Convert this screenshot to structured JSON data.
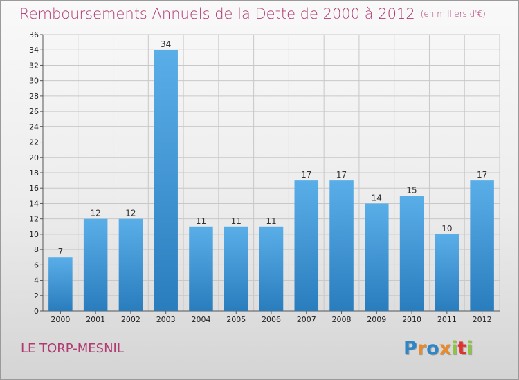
{
  "header": {
    "title": "Remboursements Annuels de la Dette de 2000 à 2012",
    "subtitle": "(en milliers d'€)"
  },
  "footer": {
    "commune": "LE TORP-MESNIL",
    "logo_letters": [
      "P",
      "r",
      "o",
      "x",
      "i",
      "t",
      "i"
    ],
    "logo_colors": [
      "#2f86c7",
      "#e8892b",
      "#2f86c7",
      "#e8892b",
      "#8cc63f",
      "#e0322f",
      "#8cc63f"
    ]
  },
  "chart_data": {
    "type": "bar",
    "title": "Remboursements Annuels de la Dette de 2000 à 2012",
    "subtitle": "(en milliers d'€)",
    "categories": [
      "2000",
      "2001",
      "2002",
      "2003",
      "2004",
      "2005",
      "2006",
      "2007",
      "2008",
      "2009",
      "2010",
      "2011",
      "2012"
    ],
    "values": [
      7,
      12,
      12,
      34,
      11,
      11,
      11,
      17,
      17,
      14,
      15,
      10,
      17
    ],
    "ylim": [
      0,
      36
    ],
    "ytick_step": 2,
    "grid": true,
    "bar_color_light": "#5aaee8",
    "bar_color_dark": "#2a7dbd",
    "grid_color": "#c8c8c8"
  }
}
